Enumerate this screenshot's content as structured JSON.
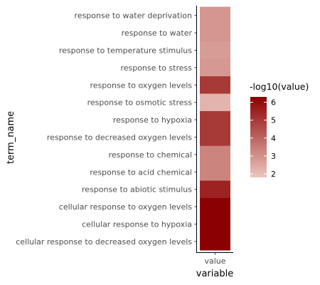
{
  "chart_data": {
    "type": "heatmap",
    "xlabel": "variable",
    "ylabel": "term_name",
    "x_categories": [
      "value"
    ],
    "rows": [
      {
        "term": "response to water deprivation",
        "value": 2.9
      },
      {
        "term": "response to water",
        "value": 2.9
      },
      {
        "term": "response to temperature stimulus",
        "value": 2.75
      },
      {
        "term": "response to stress",
        "value": 2.85
      },
      {
        "term": "response to oxygen levels",
        "value": 5.0
      },
      {
        "term": "response to osmotic stress",
        "value": 2.2
      },
      {
        "term": "response to hypoxia",
        "value": 5.0
      },
      {
        "term": "response to decreased oxygen levels",
        "value": 5.0
      },
      {
        "term": "response to chemical",
        "value": 3.3
      },
      {
        "term": "response to acid chemical",
        "value": 3.3
      },
      {
        "term": "response to abiotic stimulus",
        "value": 5.5
      },
      {
        "term": "cellular response to oxygen levels",
        "value": 6.3
      },
      {
        "term": "cellular response to hypoxia",
        "value": 6.3
      },
      {
        "term": "cellular response to decreased oxygen levels",
        "value": 6.3
      }
    ],
    "legend": {
      "title": "-log10(value)",
      "ticks": [
        2,
        3,
        4,
        5,
        6
      ],
      "range": [
        1.8,
        6.3
      ],
      "low_color": "#ecc6be",
      "high_color": "#8b0000",
      "placement": "right"
    }
  }
}
